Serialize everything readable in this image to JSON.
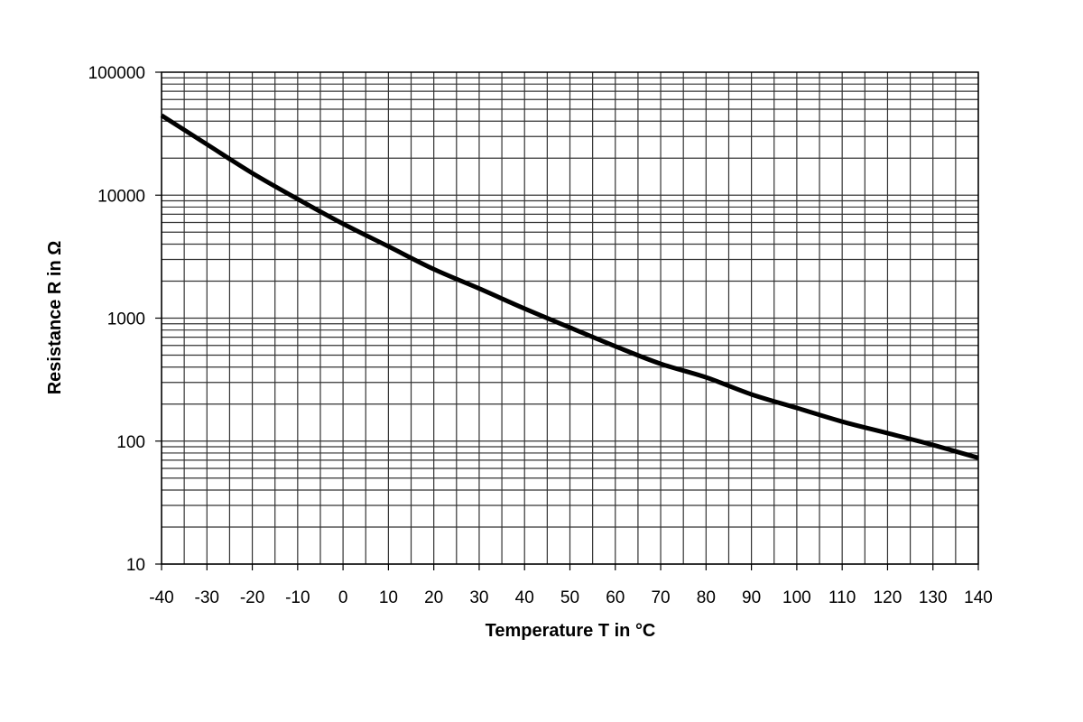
{
  "chart_data": {
    "type": "line",
    "title": "",
    "xlabel": "Temperature T in °C",
    "ylabel": "Resistance R in  Ω",
    "xlim": [
      -40,
      140
    ],
    "ylim": [
      10,
      100000
    ],
    "yscale": "log",
    "grid": true,
    "x_ticks": [
      "-40",
      "-30",
      "-20",
      "-10",
      "0",
      "10",
      "20",
      "30",
      "40",
      "50",
      "60",
      "70",
      "80",
      "90",
      "100",
      "110",
      "120",
      "130",
      "140"
    ],
    "y_ticks": [
      "10",
      "100",
      "1000",
      "10000",
      "100000"
    ],
    "line_color": "#000000",
    "series": [
      {
        "x": [
          -40,
          -30,
          -20,
          -10,
          0,
          10,
          20,
          30,
          40,
          50,
          60,
          70,
          80,
          90,
          100,
          110,
          120,
          130,
          140
        ],
        "y": [
          44500,
          25900,
          15100,
          9300,
          5850,
          3830,
          2500,
          1740,
          1195,
          838,
          590,
          425,
          330,
          240,
          186,
          144,
          116,
          93,
          73
        ]
      }
    ]
  }
}
